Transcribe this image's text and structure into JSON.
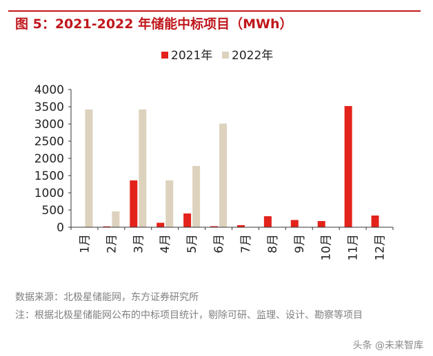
{
  "header": {
    "title": "图 5：2021-2022 年储能中标项目（MWh）"
  },
  "chart_data": {
    "type": "bar",
    "categories": [
      "1月",
      "2月",
      "3月",
      "4月",
      "5月",
      "6月",
      "7月",
      "8月",
      "9月",
      "10月",
      "11月",
      "12月"
    ],
    "series": [
      {
        "name": "2021年",
        "color": "#e3231b",
        "values": [
          0,
          25,
          1360,
          130,
          400,
          30,
          60,
          320,
          210,
          180,
          3520,
          340
        ]
      },
      {
        "name": "2022年",
        "color": "#ddd2bd",
        "values": [
          3420,
          460,
          3420,
          1360,
          1780,
          3010,
          0,
          0,
          0,
          0,
          0,
          0
        ]
      }
    ],
    "y_ticks": [
      "0",
      "500",
      "1000",
      "1500",
      "2000",
      "2500",
      "3000",
      "3500",
      "4000"
    ],
    "ylim": [
      0,
      4000
    ],
    "title": "2021-2022 年储能中标项目（MWh）",
    "xlabel": "",
    "ylabel": "",
    "legend_position": "top"
  },
  "notes": {
    "source": "数据来源：北极星储能网，东方证券研究所",
    "note": "注：根据北极星储能网公布的中标项目统计，剔除可研、监理、设计、勘察等项目"
  },
  "watermark": "头条 @未来智库"
}
